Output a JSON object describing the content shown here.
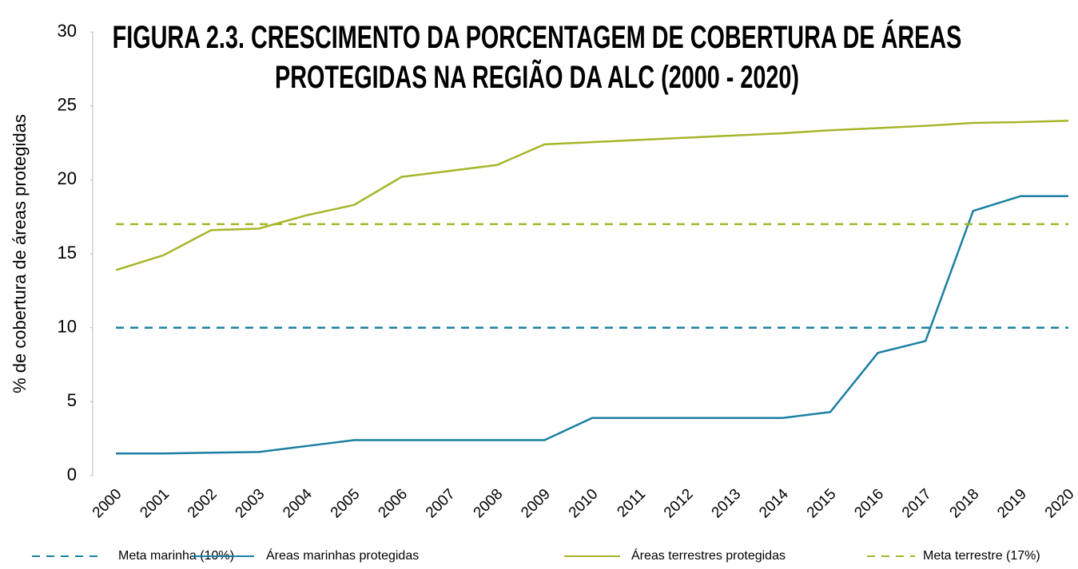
{
  "chart_data": {
    "type": "line",
    "title": [
      "FIGURA 2.3. CRESCIMENTO DA PORCENTAGEM DE COBERTURA DE ÁREAS",
      "PROTEGIDAS NA REGIÃO DA ALC (2000 - 2020)"
    ],
    "y_label": "% de cobertura de áreas protegidas",
    "categories": [
      "2000",
      "2001",
      "2002",
      "2003",
      "2004",
      "2005",
      "2006",
      "2007",
      "2008",
      "2009",
      "2010",
      "2011",
      "2012",
      "2013",
      "2014",
      "2015",
      "2016",
      "2017",
      "2018",
      "2019",
      "2020"
    ],
    "ylim": [
      0,
      30
    ],
    "yticks": [
      0,
      5,
      10,
      15,
      20,
      25,
      30
    ],
    "grid": false,
    "legend": "bottom",
    "series": [
      {
        "name": "Meta marinha (10%)",
        "color": "#1b7fa3",
        "dashed": true,
        "values": [
          10,
          10,
          10,
          10,
          10,
          10,
          10,
          10,
          10,
          10,
          10,
          10,
          10,
          10,
          10,
          10,
          10,
          10,
          10,
          10,
          10
        ]
      },
      {
        "name": "Áreas marinhas protegidas",
        "color": "#1b7fa3",
        "dashed": false,
        "values": [
          1.5,
          1.5,
          1.55,
          1.6,
          2.0,
          2.4,
          2.4,
          2.4,
          2.4,
          2.4,
          3.9,
          3.9,
          3.9,
          3.9,
          3.9,
          4.3,
          8.3,
          9.1,
          17.9,
          18.9,
          18.9
        ]
      },
      {
        "name": "Áreas terrestres protegidas",
        "color": "#a5b628",
        "dashed": false,
        "values": [
          13.9,
          14.9,
          16.6,
          16.7,
          17.6,
          18.3,
          20.2,
          20.6,
          21.0,
          22.4,
          22.55,
          22.7,
          22.85,
          23.0,
          23.15,
          23.35,
          23.5,
          23.65,
          23.85,
          23.9,
          24.0
        ]
      },
      {
        "name": "Meta terrestre (17%)",
        "color": "#a5b628",
        "dashed": true,
        "values": [
          17,
          17,
          17,
          17,
          17,
          17,
          17,
          17,
          17,
          17,
          17,
          17,
          17,
          17,
          17,
          17,
          17,
          17,
          17,
          17,
          17
        ]
      }
    ]
  }
}
